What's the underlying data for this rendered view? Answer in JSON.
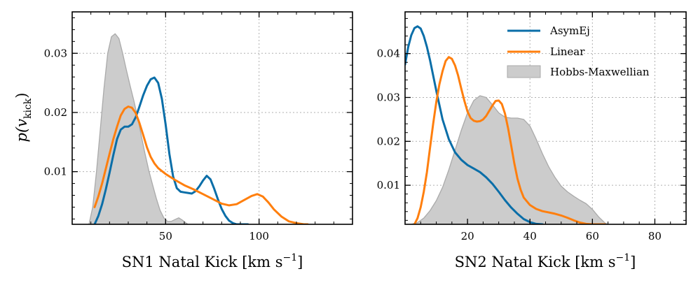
{
  "chart_data": [
    {
      "type": "line",
      "panel": "left",
      "title": "",
      "xlabel": "SN1 Natal Kick [km s",
      "xlabel_sup": "−1",
      "xlabel_tail": "]",
      "ylabel": "p(v",
      "ylabel_sub": "kick",
      "ylabel_tail": ")",
      "xlim": [
        0,
        150
      ],
      "ylim": [
        0.0011,
        0.037
      ],
      "grid": true,
      "xticks": [
        50,
        100
      ],
      "xtick_labels": [
        "50",
        "100"
      ],
      "yticks": [
        0.01,
        0.02,
        0.03
      ],
      "ytick_labels": [
        "0.01",
        "0.02",
        "0.03"
      ],
      "series": [
        {
          "name": "Hobbs-Maxwellian",
          "kind": "area",
          "color": "#aaaaaa",
          "fill": "#cccccc",
          "x": [
            9,
            11,
            13,
            15,
            17,
            19,
            21,
            23,
            25,
            27,
            29,
            31,
            33,
            35,
            37,
            39,
            41,
            43,
            45,
            47,
            49,
            51,
            53,
            55,
            57,
            59,
            61,
            62
          ],
          "y": [
            0.0011,
            0.004,
            0.01,
            0.017,
            0.024,
            0.03,
            0.0328,
            0.0333,
            0.0325,
            0.03,
            0.0272,
            0.0245,
            0.022,
            0.0192,
            0.016,
            0.013,
            0.0102,
            0.0078,
            0.0055,
            0.0035,
            0.0022,
            0.0016,
            0.0016,
            0.0019,
            0.0022,
            0.0018,
            0.0013,
            0.0011
          ]
        },
        {
          "name": "AsymEj",
          "kind": "line",
          "color": "#0a6ea8",
          "x": [
            12,
            14,
            16,
            18,
            20,
            22,
            24,
            26,
            28,
            30,
            32,
            34,
            36,
            38,
            40,
            42,
            44,
            46,
            48,
            50,
            52,
            54,
            56,
            58,
            60,
            62,
            64,
            66,
            68,
            70,
            72,
            74,
            76,
            78,
            80,
            82,
            84,
            86,
            88,
            90,
            92,
            94
          ],
          "y": [
            0.0011,
            0.0025,
            0.0045,
            0.007,
            0.0098,
            0.0128,
            0.0155,
            0.0171,
            0.0176,
            0.0176,
            0.018,
            0.0192,
            0.021,
            0.0229,
            0.0245,
            0.0256,
            0.0259,
            0.025,
            0.0223,
            0.018,
            0.013,
            0.0092,
            0.0072,
            0.0066,
            0.0065,
            0.0064,
            0.0063,
            0.0067,
            0.0075,
            0.0085,
            0.0093,
            0.0087,
            0.0071,
            0.0053,
            0.0037,
            0.0025,
            0.0017,
            0.0013,
            0.0011,
            0.0011,
            0.0011,
            0.0011
          ]
        },
        {
          "name": "Linear",
          "kind": "line",
          "color": "#ff7f0e",
          "x": [
            12,
            14,
            16,
            18,
            20,
            22,
            24,
            26,
            28,
            30,
            32,
            34,
            36,
            38,
            40,
            42,
            44,
            46,
            48,
            50,
            55,
            60,
            65,
            70,
            75,
            80,
            84,
            88,
            92,
            96,
            99,
            102,
            105,
            108,
            112,
            116,
            120,
            124,
            126
          ],
          "y": [
            0.004,
            0.0058,
            0.008,
            0.0105,
            0.013,
            0.0155,
            0.0176,
            0.0195,
            0.0206,
            0.021,
            0.0208,
            0.0199,
            0.0182,
            0.0162,
            0.0141,
            0.0125,
            0.0114,
            0.0106,
            0.0101,
            0.0096,
            0.0086,
            0.0077,
            0.007,
            0.0062,
            0.0054,
            0.0046,
            0.0043,
            0.0045,
            0.0052,
            0.0059,
            0.0062,
            0.0058,
            0.0048,
            0.0036,
            0.0024,
            0.0016,
            0.0013,
            0.0011,
            0.0011
          ]
        }
      ]
    },
    {
      "type": "line",
      "panel": "right",
      "title": "",
      "xlabel": "SN2 Natal Kick [km s",
      "xlabel_sup": "−1",
      "xlabel_tail": "]",
      "ylabel": "",
      "xlim": [
        0,
        90
      ],
      "ylim": [
        0.0011,
        0.0495
      ],
      "grid": true,
      "xticks": [
        20,
        40,
        60,
        80
      ],
      "xtick_labels": [
        "20",
        "40",
        "60",
        "80"
      ],
      "yticks": [
        0.01,
        0.02,
        0.03,
        0.04
      ],
      "ytick_labels": [
        "0.01",
        "0.02",
        "0.03",
        "0.04"
      ],
      "legend_position": "top-right",
      "series": [
        {
          "name": "Hobbs-Maxwellian",
          "kind": "area",
          "color": "#aaaaaa",
          "fill": "#cccccc",
          "x": [
            2,
            4,
            6,
            8,
            10,
            12,
            14,
            16,
            18,
            20,
            22,
            24,
            26,
            28,
            30,
            32,
            34,
            36,
            38,
            40,
            42,
            44,
            46,
            48,
            50,
            52,
            54,
            56,
            58,
            60,
            62,
            64,
            65
          ],
          "y": [
            0.0011,
            0.0015,
            0.0025,
            0.0042,
            0.0065,
            0.0095,
            0.0135,
            0.018,
            0.0225,
            0.0265,
            0.0293,
            0.0304,
            0.03,
            0.0283,
            0.0265,
            0.0255,
            0.0253,
            0.0253,
            0.025,
            0.0235,
            0.0205,
            0.0172,
            0.0142,
            0.0118,
            0.0098,
            0.0085,
            0.0075,
            0.0066,
            0.0058,
            0.0045,
            0.0028,
            0.0014,
            0.0011
          ]
        },
        {
          "name": "AsymEj",
          "kind": "line",
          "color": "#0a6ea8",
          "x": [
            0,
            1,
            2,
            3,
            4,
            5,
            6,
            7,
            8,
            9,
            10,
            12,
            14,
            16,
            18,
            20,
            22,
            24,
            26,
            28,
            30,
            32,
            34,
            36,
            38,
            40,
            42,
            44
          ],
          "y": [
            0.0375,
            0.0415,
            0.0442,
            0.0458,
            0.0462,
            0.0457,
            0.044,
            0.0415,
            0.0385,
            0.035,
            0.0315,
            0.025,
            0.0205,
            0.0175,
            0.0158,
            0.0146,
            0.0138,
            0.013,
            0.0118,
            0.0103,
            0.0085,
            0.0066,
            0.0049,
            0.0035,
            0.0023,
            0.0016,
            0.0012,
            0.0011
          ]
        },
        {
          "name": "Linear",
          "kind": "line",
          "color": "#ff7f0e",
          "x": [
            3,
            4,
            5,
            6,
            7,
            8,
            9,
            10,
            11,
            12,
            13,
            14,
            15,
            16,
            17,
            18,
            19,
            20,
            21,
            22,
            23,
            24,
            25,
            26,
            27,
            28,
            29,
            30,
            31,
            32,
            33,
            34,
            35,
            36,
            37,
            38,
            40,
            42,
            44,
            46,
            48,
            50,
            52,
            54,
            56,
            58,
            60,
            62,
            64
          ],
          "y": [
            0.0011,
            0.0025,
            0.005,
            0.0085,
            0.013,
            0.0185,
            0.024,
            0.029,
            0.033,
            0.036,
            0.0383,
            0.0392,
            0.0388,
            0.0373,
            0.035,
            0.032,
            0.0292,
            0.0268,
            0.0253,
            0.0247,
            0.0245,
            0.0246,
            0.025,
            0.0258,
            0.027,
            0.0282,
            0.0292,
            0.0293,
            0.0285,
            0.0263,
            0.023,
            0.019,
            0.015,
            0.0115,
            0.009,
            0.0072,
            0.0055,
            0.0046,
            0.0041,
            0.0038,
            0.0035,
            0.0031,
            0.0026,
            0.002,
            0.0015,
            0.0012,
            0.0011,
            0.0011,
            0.0011
          ]
        }
      ]
    }
  ]
}
